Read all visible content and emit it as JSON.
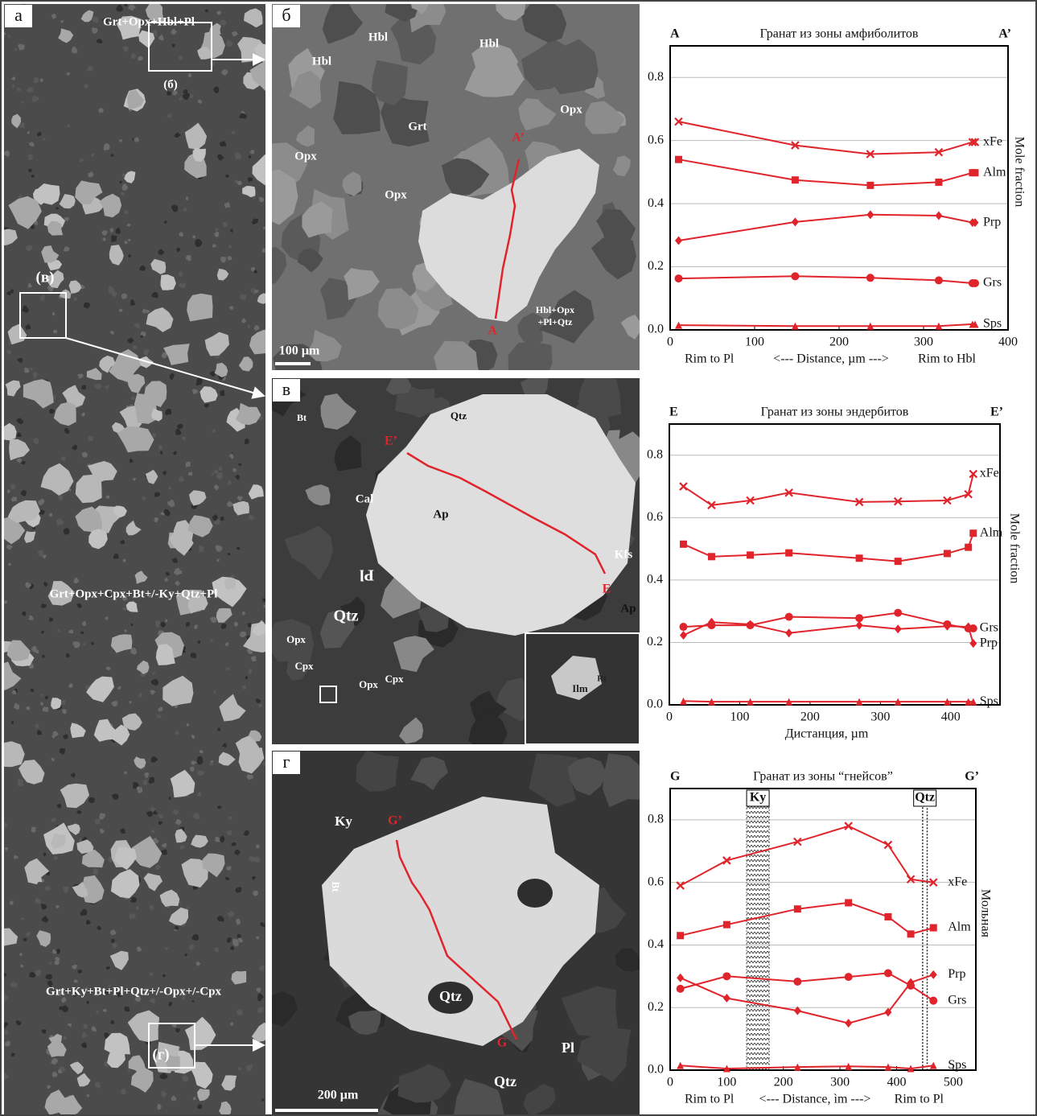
{
  "panels": [
    {
      "letter": "а",
      "labels": [
        "Grt+Opx+Hbl+Pl",
        "(б)",
        "(в)",
        "Grt+Opx+Cpx+Bt+/-Ky+Qtz+Pl",
        "Grt+Ky+Bt+Pl+Qtz+/-Opx+/-Cpx",
        "(г)"
      ]
    },
    {
      "letter": "б",
      "labels": [
        "Hbl",
        "Hbl",
        "Hbl",
        "Grt",
        "Opx",
        "Opx",
        "Opx",
        "A’",
        "A",
        "Hbl+Opx",
        "+Pl+Qtz"
      ],
      "scale": "100 µm"
    },
    {
      "letter": "в",
      "labels": [
        "Bt",
        "Qtz",
        "E’",
        "Cal",
        "Ap",
        "Kfs",
        "E",
        "Ap",
        "Pl",
        "Qtz",
        "Opx",
        "Cpx",
        "Opx",
        "Cpx",
        "Ilm",
        "Rt"
      ]
    },
    {
      "letter": "г",
      "labels": [
        "Ky",
        "G’",
        "Bt",
        "Qtz",
        "G",
        "Pl",
        "Qtz"
      ],
      "scale": "200 µm"
    }
  ],
  "chart_data": [
    {
      "type": "line",
      "title": "Гранат из зоны амфиболитов",
      "corner_left": "A",
      "corner_right": "A’",
      "x_label_left": "Rim to Pl",
      "x_label": "<--- Distance, µm --->",
      "x_label_right": "Rim to Hbl",
      "y_label": "Mole fraction",
      "xlim": [
        0,
        400
      ],
      "ylim": [
        0,
        0.9
      ],
      "xticks": [
        0,
        100,
        200,
        300,
        400
      ],
      "yticks": [
        {
          "value": 0,
          "label": "0.0"
        },
        0.2,
        0.4,
        0.6,
        0.8
      ],
      "grid": true,
      "legend_markers": true,
      "x": [
        10,
        148,
        237,
        318,
        358
      ],
      "series": [
        {
          "name": "xFe",
          "color": "#e0242b",
          "marker": "cross",
          "values": [
            0.66,
            0.585,
            0.557,
            0.563,
            0.595
          ]
        },
        {
          "name": "Alm",
          "color": "#e0242b",
          "marker": "square",
          "values": [
            0.54,
            0.475,
            0.458,
            0.468,
            0.498
          ]
        },
        {
          "name": "Prp",
          "color": "#e0242b",
          "marker": "diamond",
          "values": [
            0.283,
            0.342,
            0.365,
            0.362,
            0.34
          ]
        },
        {
          "name": "Grs",
          "color": "#e0242b",
          "marker": "circle",
          "values": [
            0.163,
            0.17,
            0.165,
            0.157,
            0.148
          ]
        },
        {
          "name": "Sps",
          "color": "#e0242b",
          "marker": "triangle",
          "values": [
            0.015,
            0.012,
            0.012,
            0.012,
            0.018
          ]
        }
      ]
    },
    {
      "type": "line",
      "title": "Гранат из зоны эндербитов",
      "corner_left": "E",
      "corner_right": "E’",
      "x_label": "Дистанция, µm",
      "y_label": "Mole fraction",
      "xlim": [
        0,
        470
      ],
      "ylim": [
        0,
        0.9
      ],
      "xticks": [
        0,
        100,
        200,
        300,
        400
      ],
      "yticks": [
        {
          "value": 0,
          "label": "0.0"
        },
        0.2,
        0.4,
        0.6,
        0.8
      ],
      "grid": true,
      "x": [
        20,
        60,
        115,
        170,
        270,
        325,
        395,
        425,
        432
      ],
      "series": [
        {
          "name": "xFe",
          "color": "#e0242b",
          "marker": "cross",
          "values": [
            0.7,
            0.64,
            0.655,
            0.68,
            0.65,
            0.652,
            0.655,
            0.675,
            0.74
          ]
        },
        {
          "name": "Alm",
          "color": "#e0242b",
          "marker": "square",
          "values": [
            0.515,
            0.475,
            0.48,
            0.487,
            0.47,
            0.46,
            0.485,
            0.505,
            0.55
          ]
        },
        {
          "name": "Grs",
          "color": "#e0242b",
          "marker": "circle",
          "values": [
            0.25,
            0.255,
            0.255,
            0.282,
            0.278,
            0.295,
            0.258,
            0.245,
            0.245
          ]
        },
        {
          "name": "Prp",
          "color": "#e0242b",
          "marker": "diamond",
          "values": [
            0.223,
            0.265,
            0.258,
            0.23,
            0.255,
            0.243,
            0.252,
            0.25,
            0.197
          ]
        },
        {
          "name": "Sps",
          "color": "#e0242b",
          "marker": "triangle",
          "values": [
            0.012,
            0.01,
            0.01,
            0.01,
            0.01,
            0.01,
            0.01,
            0.01,
            0.01
          ]
        }
      ]
    },
    {
      "type": "line",
      "title": "Гранат из зоны “гнейсов”",
      "corner_left": "G",
      "corner_right": "G’",
      "x_label_left": "Rim to Pl",
      "x_label": "<--- Distance, ìm --->",
      "x_label_right": "Rim to Pl",
      "y_label": "Мольная",
      "xlim": [
        0,
        540
      ],
      "ylim": [
        0,
        0.9
      ],
      "xticks": [
        0,
        100,
        200,
        300,
        400,
        500
      ],
      "yticks": [
        {
          "value": 0,
          "label": "0.0"
        },
        0.2,
        0.4,
        0.6,
        0.8
      ],
      "grid": true,
      "bands": [
        {
          "label": "Ky",
          "xlim": [
            135,
            175
          ],
          "style": "zigzag"
        },
        {
          "label": "Qtz",
          "xlim": [
            446,
            454
          ],
          "style": "dotted"
        }
      ],
      "x": [
        18,
        100,
        225,
        315,
        385,
        425,
        465
      ],
      "series": [
        {
          "name": "xFe",
          "color": "#e0242b",
          "marker": "cross",
          "values": [
            0.59,
            0.67,
            0.73,
            0.78,
            0.72,
            0.61,
            0.6
          ]
        },
        {
          "name": "Alm",
          "color": "#e0242b",
          "marker": "square",
          "values": [
            0.43,
            0.465,
            0.515,
            0.535,
            0.49,
            0.435,
            0.455
          ]
        },
        {
          "name": "Prp",
          "color": "#e0242b",
          "marker": "diamond",
          "values": [
            0.295,
            0.23,
            0.19,
            0.15,
            0.185,
            0.28,
            0.305
          ]
        },
        {
          "name": "Grs",
          "color": "#e0242b",
          "marker": "circle",
          "values": [
            0.26,
            0.3,
            0.283,
            0.298,
            0.31,
            0.27,
            0.222
          ]
        },
        {
          "name": "Sps",
          "color": "#e0242b",
          "marker": "triangle",
          "values": [
            0.015,
            0.005,
            0.01,
            0.012,
            0.01,
            0.005,
            0.015
          ]
        }
      ]
    }
  ]
}
